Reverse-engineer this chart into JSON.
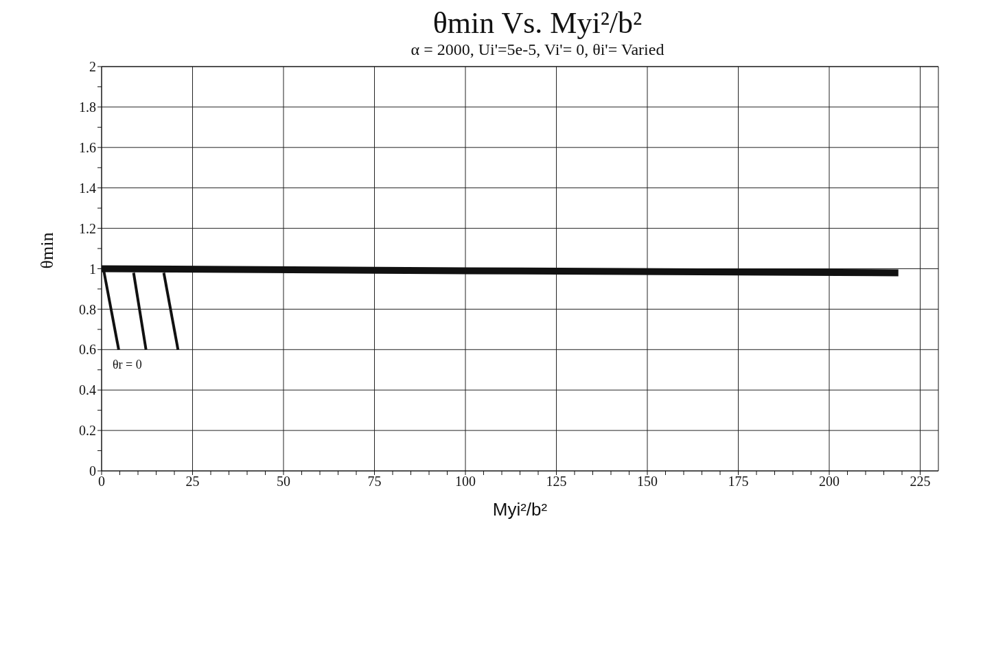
{
  "chart_data": {
    "type": "line",
    "title": "θmin Vs. Myi²/b²",
    "subtitle": "α = 2000,  Ui'=5e-5,  Vi'= 0,  θi'= Varied",
    "xlabel": "Myi²/b²",
    "ylabel": "θmin",
    "series": [
      {
        "color": "#111111",
        "x": [
          0,
          100,
          219
        ],
        "values": [
          1.0,
          0.99,
          0.98
        ]
      },
      {
        "color": "#111111",
        "x": [
          0.5,
          4.7
        ],
        "values": [
          1.0,
          0.6
        ]
      },
      {
        "color": "#111111",
        "x": [
          8.8,
          12.2
        ],
        "values": [
          0.98,
          0.6
        ]
      },
      {
        "color": "#111111",
        "x": [
          17.1,
          21
        ],
        "values": [
          0.98,
          0.6
        ]
      }
    ],
    "annotations": [
      "θr = 0"
    ],
    "xlim": [
      0,
      230
    ],
    "ylim": [
      0,
      2
    ],
    "xticks": [
      0,
      {
        "value": 5,
        "label": null
      },
      {
        "value": 10,
        "label": null
      },
      {
        "value": 15,
        "label": null
      },
      {
        "value": 20,
        "label": null
      },
      25,
      {
        "value": 30,
        "label": null
      },
      {
        "value": 35,
        "label": null
      },
      {
        "value": 40,
        "label": null
      },
      {
        "value": 45,
        "label": null
      },
      50,
      {
        "value": 55,
        "label": null
      },
      {
        "value": 60,
        "label": null
      },
      {
        "value": 65,
        "label": null
      },
      {
        "value": 70,
        "label": null
      },
      75,
      {
        "value": 80,
        "label": null
      },
      {
        "value": 85,
        "label": null
      },
      {
        "value": 90,
        "label": null
      },
      {
        "value": 95,
        "label": null
      },
      100,
      {
        "value": 105,
        "label": null
      },
      {
        "value": 110,
        "label": null
      },
      {
        "value": 115,
        "label": null
      },
      {
        "value": 120,
        "label": null
      },
      125,
      {
        "value": 130,
        "label": null
      },
      {
        "value": 135,
        "label": null
      },
      {
        "value": 140,
        "label": null
      },
      {
        "value": 145,
        "label": null
      },
      150,
      {
        "value": 155,
        "label": null
      },
      {
        "value": 160,
        "label": null
      },
      {
        "value": 165,
        "label": null
      },
      {
        "value": 170,
        "label": null
      },
      175,
      {
        "value": 180,
        "label": null
      },
      {
        "value": 185,
        "label": null
      },
      {
        "value": 190,
        "label": null
      },
      {
        "value": 195,
        "label": null
      },
      200,
      {
        "value": 205,
        "label": null
      },
      {
        "value": 210,
        "label": null
      },
      {
        "value": 215,
        "label": null
      },
      {
        "value": 220,
        "label": null
      },
      225
    ],
    "yticks": [
      0,
      {
        "value": 0.1,
        "label": null
      },
      0.2,
      {
        "value": 0.3,
        "label": null
      },
      0.4,
      {
        "value": 0.5,
        "label": null
      },
      0.6,
      {
        "value": 0.7,
        "label": null
      },
      0.8,
      {
        "value": 0.9,
        "label": null
      },
      1,
      {
        "value": 1.1,
        "label": null
      },
      1.2,
      {
        "value": 1.3,
        "label": null
      },
      1.4,
      {
        "value": 1.5,
        "label": null
      },
      1.6,
      {
        "value": 1.7,
        "label": null
      },
      1.8,
      {
        "value": 1.9,
        "label": null
      },
      2
    ],
    "grid": true,
    "marker": "none",
    "line_style": "solid"
  }
}
